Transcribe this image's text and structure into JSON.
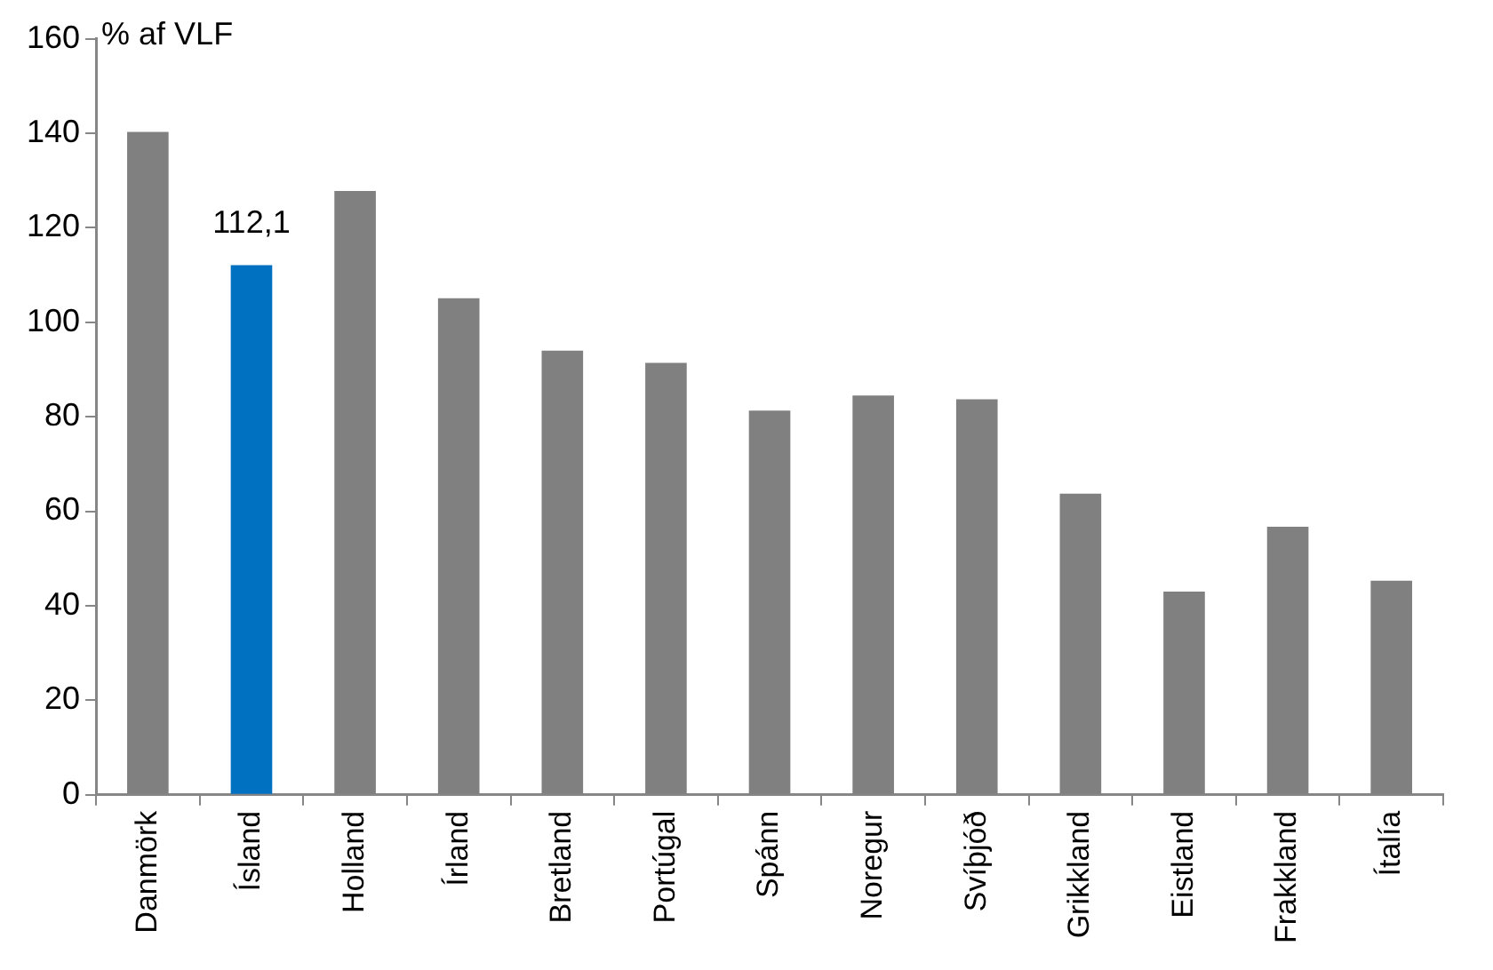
{
  "chart_data": {
    "type": "bar",
    "ylabel": "% af VLF",
    "categories": [
      "Danmörk",
      "Ísland",
      "Holland",
      "Írland",
      "Bretland",
      "Portúgal",
      "Spánn",
      "Noregur",
      "Svíþjóð",
      "Grikkland",
      "Eistland",
      "Frakkland",
      "Ítalía"
    ],
    "values": [
      140.3,
      112.1,
      127.8,
      105.1,
      94.0,
      91.4,
      81.3,
      84.5,
      83.7,
      63.7,
      43.0,
      56.7,
      45.3
    ],
    "colors": [
      "#808080",
      "#0070c0",
      "#808080",
      "#808080",
      "#808080",
      "#808080",
      "#808080",
      "#808080",
      "#808080",
      "#808080",
      "#808080",
      "#808080",
      "#808080"
    ],
    "value_labels": [
      null,
      "112,1",
      null,
      null,
      null,
      null,
      null,
      null,
      null,
      null,
      null,
      null,
      null
    ],
    "ylim": [
      0,
      160
    ],
    "yticks": [
      0,
      20,
      40,
      60,
      80,
      100,
      120,
      140,
      160
    ],
    "grid": false
  }
}
